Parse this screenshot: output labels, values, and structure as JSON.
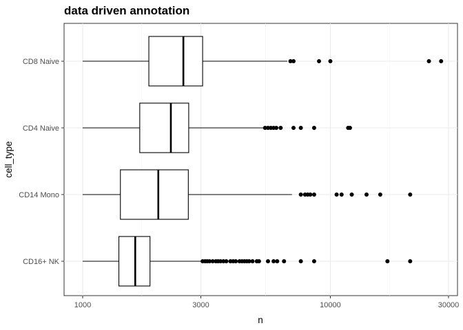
{
  "chart_data": {
    "type": "boxplot",
    "title": "data driven annotation",
    "xlabel": "n",
    "ylabel": "cell_type",
    "x_scale": "log10",
    "xlim": [
      1000,
      30000
    ],
    "x_ticks": [
      1000,
      3000,
      10000,
      30000
    ],
    "x_tick_labels": [
      "1000",
      "3000",
      "10000",
      "30000"
    ],
    "grid": true,
    "categories": [
      "CD8 Naive",
      "CD4 Naive",
      "CD14 Mono",
      "CD16+ NK"
    ],
    "boxes": [
      {
        "category": "CD8 Naive",
        "whisker_low": 1000,
        "q1": 1850,
        "median": 2550,
        "q3": 3050,
        "whisker_high": 6700,
        "outliers": [
          6900,
          7100,
          9000,
          10000,
          25000,
          28000
        ]
      },
      {
        "category": "CD4 Naive",
        "whisker_low": 1000,
        "q1": 1700,
        "median": 2270,
        "q3": 2680,
        "whisker_high": 5400,
        "outliers": [
          5450,
          5600,
          5750,
          5900,
          6050,
          6300,
          7100,
          7600,
          8600,
          11800,
          12000
        ]
      },
      {
        "category": "CD14 Mono",
        "whisker_low": 1000,
        "q1": 1420,
        "median": 2020,
        "q3": 2670,
        "whisker_high": 7000,
        "outliers": [
          7600,
          7900,
          8100,
          8300,
          8600,
          10600,
          11100,
          12200,
          14000,
          15900,
          21000
        ]
      },
      {
        "category": "CD16+ NK",
        "whisker_low": 1000,
        "q1": 1400,
        "median": 1630,
        "q3": 1870,
        "whisker_high": 3000,
        "outliers": [
          3050,
          3120,
          3180,
          3250,
          3350,
          3450,
          3520,
          3600,
          3700,
          3800,
          3950,
          4050,
          4150,
          4300,
          4400,
          4500,
          4600,
          4700,
          4850,
          5050,
          5150,
          5600,
          5900,
          6100,
          6500,
          7600,
          8600,
          17000,
          21000
        ]
      }
    ]
  }
}
